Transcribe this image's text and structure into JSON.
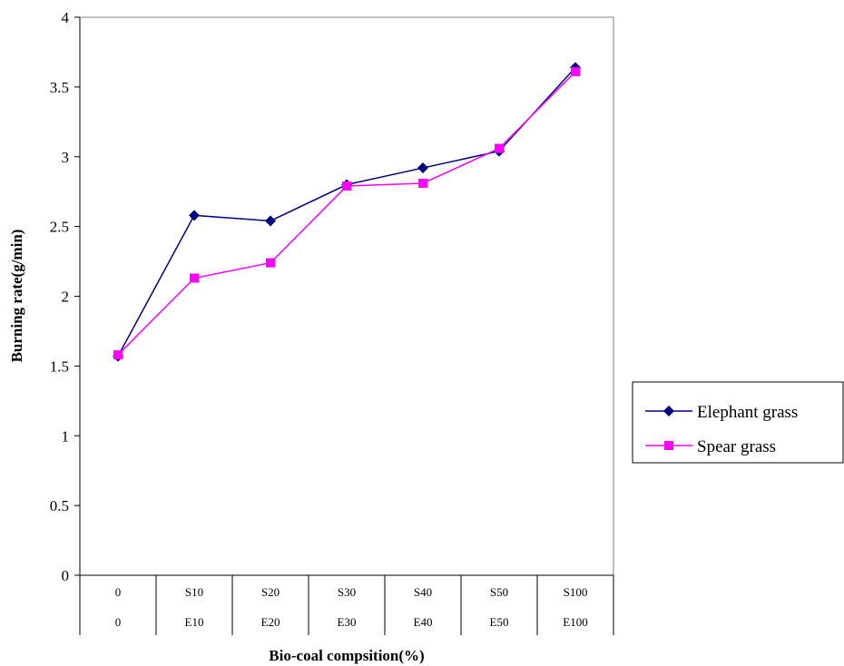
{
  "chart_data": {
    "type": "line",
    "title": "",
    "xlabel": "Bio-coal compsition(%)",
    "ylabel": "Burning rate(g/min)",
    "ylim": [
      0,
      4
    ],
    "yticks": [
      "0",
      "0.5",
      "1",
      "1.5",
      "2",
      "2.5",
      "3",
      "3.5",
      "4"
    ],
    "ytick_values": [
      0,
      0.5,
      1,
      1.5,
      2,
      2.5,
      3,
      3.5,
      4
    ],
    "categories_row1": [
      "0",
      "S10",
      "S20",
      "S30",
      "S40",
      "S50",
      "S100"
    ],
    "categories_row2": [
      "0",
      "E10",
      "E20",
      "E30",
      "E40",
      "E50",
      "E100"
    ],
    "grid": false,
    "legend_position": "right",
    "series": [
      {
        "name": "Elephant grass",
        "color": "#000080",
        "marker": "diamond",
        "values": [
          1.57,
          2.58,
          2.54,
          2.8,
          2.92,
          3.04,
          3.64
        ]
      },
      {
        "name": "Spear grass",
        "color": "#ff00ff",
        "marker": "square",
        "values": [
          1.58,
          2.13,
          2.24,
          2.79,
          2.81,
          3.06,
          3.61
        ]
      }
    ]
  }
}
